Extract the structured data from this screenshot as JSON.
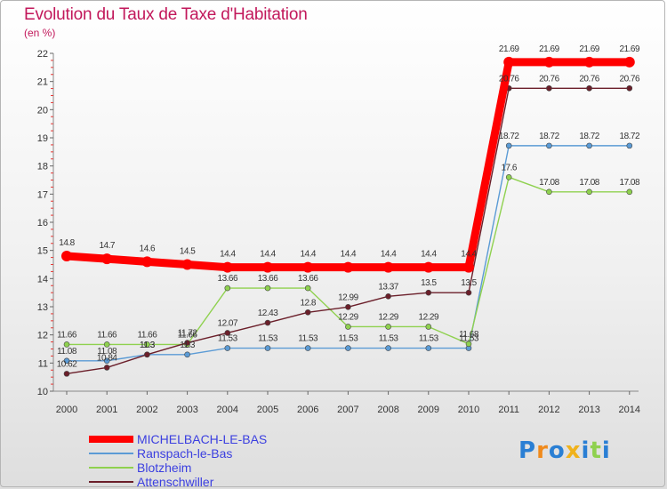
{
  "title": "Evolution du Taux de Taxe d'Habitation",
  "unit_label": "(en %)",
  "logo_text": "Proxiti",
  "chart_data": {
    "type": "line",
    "x": [
      2000,
      2001,
      2002,
      2003,
      2004,
      2005,
      2006,
      2007,
      2008,
      2009,
      2010,
      2011,
      2012,
      2013,
      2014
    ],
    "ylim": [
      10,
      22
    ],
    "yticks": [
      10,
      11,
      12,
      13,
      14,
      15,
      16,
      17,
      18,
      19,
      20,
      21,
      22
    ],
    "grid": false,
    "legend_position": "bottom-left",
    "series": [
      {
        "name": "MICHELBACH-LE-BAS",
        "color": "#ff0000",
        "values": [
          14.8,
          14.7,
          14.6,
          14.5,
          14.4,
          14.4,
          14.4,
          14.4,
          14.4,
          14.4,
          14.4,
          21.69,
          21.69,
          21.69,
          21.69
        ]
      },
      {
        "name": "Ranspach-le-Bas",
        "color": "#5b9bd5",
        "values": [
          11.08,
          11.08,
          11.3,
          11.3,
          11.53,
          11.53,
          11.53,
          11.53,
          11.53,
          11.53,
          11.53,
          18.72,
          18.72,
          18.72,
          18.72
        ]
      },
      {
        "name": "Blotzheim",
        "color": "#8fd14f",
        "values": [
          11.66,
          11.66,
          11.66,
          11.66,
          13.66,
          13.66,
          13.66,
          12.29,
          12.29,
          12.29,
          11.68,
          17.6,
          17.08,
          17.08,
          17.08
        ]
      },
      {
        "name": "Attenschwiller",
        "color": "#6b1f2a",
        "values": [
          10.62,
          10.84,
          11.3,
          11.72,
          12.07,
          12.43,
          12.8,
          12.99,
          13.37,
          13.5,
          13.5,
          20.76,
          20.76,
          20.76,
          20.76
        ]
      }
    ]
  }
}
